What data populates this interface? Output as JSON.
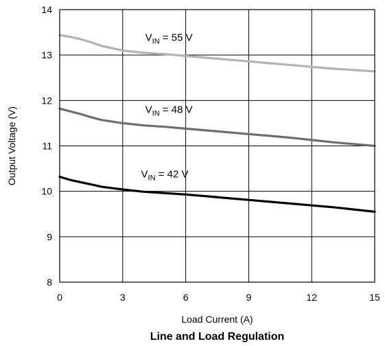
{
  "chart_data": {
    "type": "line",
    "title": "Line and Load Regulation",
    "xlabel": "Load Current (A)",
    "ylabel": "Output Voltage (V)",
    "xlim": [
      0,
      15
    ],
    "ylim": [
      8,
      14
    ],
    "xticks": [
      0,
      3,
      6,
      9,
      12,
      15
    ],
    "yticks": [
      8,
      9,
      10,
      11,
      12,
      13,
      14
    ],
    "grid": true,
    "series": [
      {
        "name": "VIN = 55 V",
        "label_main": "V",
        "label_sub": "IN",
        "label_rest": " = 55 V",
        "color": "#b3b3b3",
        "x": [
          0,
          0.5,
          1,
          1.5,
          2,
          3,
          4,
          5,
          6,
          7,
          8,
          9,
          10,
          11,
          12,
          13,
          14,
          15
        ],
        "y": [
          13.44,
          13.4,
          13.35,
          13.28,
          13.2,
          13.1,
          13.05,
          13.02,
          12.98,
          12.94,
          12.9,
          12.86,
          12.82,
          12.78,
          12.74,
          12.7,
          12.67,
          12.64
        ]
      },
      {
        "name": "VIN = 48 V",
        "label_main": "V",
        "label_sub": "IN",
        "label_rest": " = 48 V",
        "color": "#6e6e6e",
        "x": [
          0,
          0.5,
          1,
          1.5,
          2,
          3,
          4,
          5,
          6,
          7,
          8,
          9,
          10,
          11,
          12,
          13,
          14,
          15
        ],
        "y": [
          11.82,
          11.76,
          11.7,
          11.63,
          11.57,
          11.5,
          11.45,
          11.42,
          11.38,
          11.34,
          11.3,
          11.26,
          11.22,
          11.18,
          11.13,
          11.08,
          11.04,
          11.0
        ]
      },
      {
        "name": "VIN = 42 V",
        "label_main": "V",
        "label_sub": "IN",
        "label_rest": " = 42 V",
        "color": "#000000",
        "x": [
          0,
          0.5,
          1,
          1.5,
          2,
          3,
          4,
          5,
          6,
          7,
          8,
          9,
          10,
          11,
          12,
          13,
          14,
          15
        ],
        "y": [
          10.32,
          10.25,
          10.2,
          10.15,
          10.1,
          10.04,
          9.99,
          9.96,
          9.93,
          9.89,
          9.85,
          9.81,
          9.77,
          9.73,
          9.69,
          9.65,
          9.6,
          9.55
        ]
      }
    ]
  }
}
